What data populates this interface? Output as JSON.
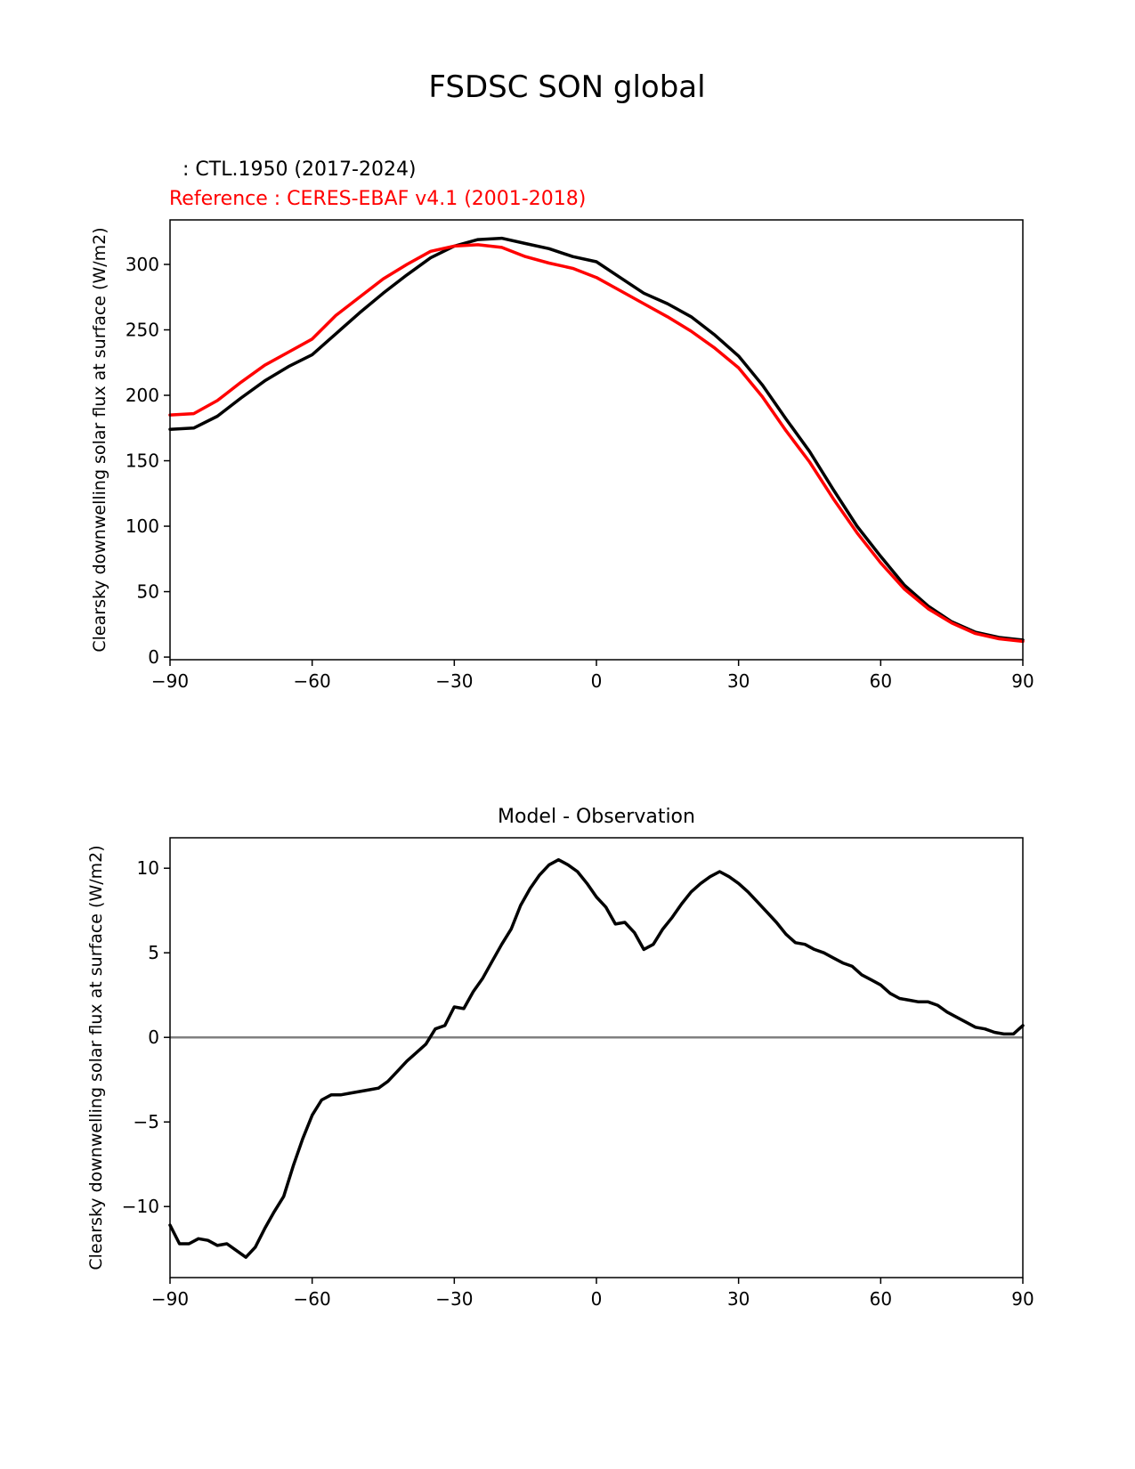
{
  "figure": {
    "title": "FSDSC SON global"
  },
  "chart_data": [
    {
      "type": "line",
      "title": "",
      "legend": {
        "placement": "top-left, above axes",
        "model_label": ": CTL.1950 (2017-2024)",
        "reference_label": "Reference : CERES-EBAF v4.1 (2001-2018)"
      },
      "xlabel": "",
      "ylabel": "Clearsky downwelling solar flux at surface (W/m2)",
      "xlim": [
        -90,
        90
      ],
      "ylim": [
        -2,
        334
      ],
      "xticks": [
        -90,
        -60,
        -30,
        0,
        30,
        60,
        90
      ],
      "xtick_labels": [
        "−90",
        "−60",
        "−30",
        "0",
        "30",
        "60",
        "90"
      ],
      "yticks": [
        0,
        50,
        100,
        150,
        200,
        250,
        300
      ],
      "ytick_labels": [
        "0",
        "50",
        "100",
        "150",
        "200",
        "250",
        "300"
      ],
      "x": [
        -90,
        -85,
        -80,
        -75,
        -70,
        -65,
        -60,
        -55,
        -50,
        -45,
        -40,
        -35,
        -30,
        -25,
        -20,
        -15,
        -10,
        -5,
        0,
        5,
        10,
        15,
        20,
        25,
        30,
        35,
        40,
        45,
        50,
        55,
        60,
        65,
        70,
        75,
        80,
        85,
        90
      ],
      "series": [
        {
          "name": "CTL.1950 (2017-2024)",
          "color": "#000000",
          "values": [
            174,
            175,
            184,
            198,
            211,
            222,
            231,
            247,
            263,
            278,
            292,
            305,
            314,
            319,
            320,
            316,
            312,
            306,
            302,
            290,
            278,
            270,
            260,
            246,
            230,
            208,
            182,
            157,
            128,
            100,
            77,
            55,
            39,
            27,
            19,
            15,
            13
          ]
        },
        {
          "name": "Reference : CERES-EBAF v4.1 (2001-2018)",
          "color": "#ff0000",
          "values": [
            185,
            186,
            196,
            210,
            223,
            233,
            243,
            261,
            275,
            289,
            300,
            310,
            314,
            315,
            313,
            306,
            301,
            297,
            290,
            280,
            270,
            260,
            249,
            236,
            221,
            199,
            173,
            149,
            121,
            95,
            72,
            52,
            37,
            26,
            18,
            14,
            12
          ]
        }
      ]
    },
    {
      "type": "line",
      "title": "Model - Observation",
      "xlabel": "",
      "ylabel": "Clearsky downwelling solar flux at surface (W/m2)",
      "xlim": [
        -90,
        90
      ],
      "ylim": [
        -14.2,
        11.8
      ],
      "xticks": [
        -90,
        -60,
        -30,
        0,
        30,
        60,
        90
      ],
      "xtick_labels": [
        "−90",
        "−60",
        "−30",
        "0",
        "30",
        "60",
        "90"
      ],
      "yticks": [
        -10,
        -5,
        0,
        5,
        10
      ],
      "ytick_labels": [
        "−10",
        "−5",
        "0",
        "5",
        "10"
      ],
      "zero_line_color": "#808080",
      "x": [
        -90,
        -88,
        -86,
        -84,
        -82,
        -80,
        -78,
        -76,
        -74,
        -72,
        -70,
        -68,
        -66,
        -64,
        -62,
        -60,
        -58,
        -56,
        -54,
        -52,
        -50,
        -48,
        -46,
        -44,
        -42,
        -40,
        -38,
        -36,
        -34,
        -32,
        -30,
        -28,
        -26,
        -24,
        -22,
        -20,
        -18,
        -16,
        -14,
        -12,
        -10,
        -8,
        -6,
        -4,
        -2,
        0,
        2,
        4,
        6,
        8,
        10,
        12,
        14,
        16,
        18,
        20,
        22,
        24,
        26,
        28,
        30,
        32,
        34,
        36,
        38,
        40,
        42,
        44,
        46,
        48,
        50,
        52,
        54,
        56,
        58,
        60,
        62,
        64,
        66,
        68,
        70,
        72,
        74,
        76,
        78,
        80,
        82,
        84,
        86,
        88,
        90
      ],
      "series": [
        {
          "name": "Model - Observation",
          "color": "#000000",
          "values": [
            -11.1,
            -12.2,
            -12.2,
            -11.9,
            -12.0,
            -12.3,
            -12.2,
            -12.6,
            -13.0,
            -12.4,
            -11.3,
            -10.3,
            -9.4,
            -7.6,
            -6.0,
            -4.6,
            -3.7,
            -3.4,
            -3.4,
            -3.3,
            -3.2,
            -3.1,
            -3.0,
            -2.6,
            -2.0,
            -1.4,
            -0.9,
            -0.4,
            0.5,
            0.7,
            1.8,
            1.7,
            2.7,
            3.5,
            4.5,
            5.5,
            6.4,
            7.8,
            8.8,
            9.6,
            10.2,
            10.5,
            10.2,
            9.8,
            9.1,
            8.3,
            7.7,
            6.7,
            6.8,
            6.2,
            5.2,
            5.5,
            6.4,
            7.1,
            7.9,
            8.6,
            9.1,
            9.5,
            9.8,
            9.5,
            9.1,
            8.6,
            8.0,
            7.4,
            6.8,
            6.1,
            5.6,
            5.5,
            5.2,
            5.0,
            4.7,
            4.4,
            4.2,
            3.7,
            3.4,
            3.1,
            2.6,
            2.3,
            2.2,
            2.1,
            2.1,
            1.9,
            1.5,
            1.2,
            0.9,
            0.6,
            0.5,
            0.3,
            0.2,
            0.2,
            0.7
          ]
        }
      ]
    }
  ]
}
